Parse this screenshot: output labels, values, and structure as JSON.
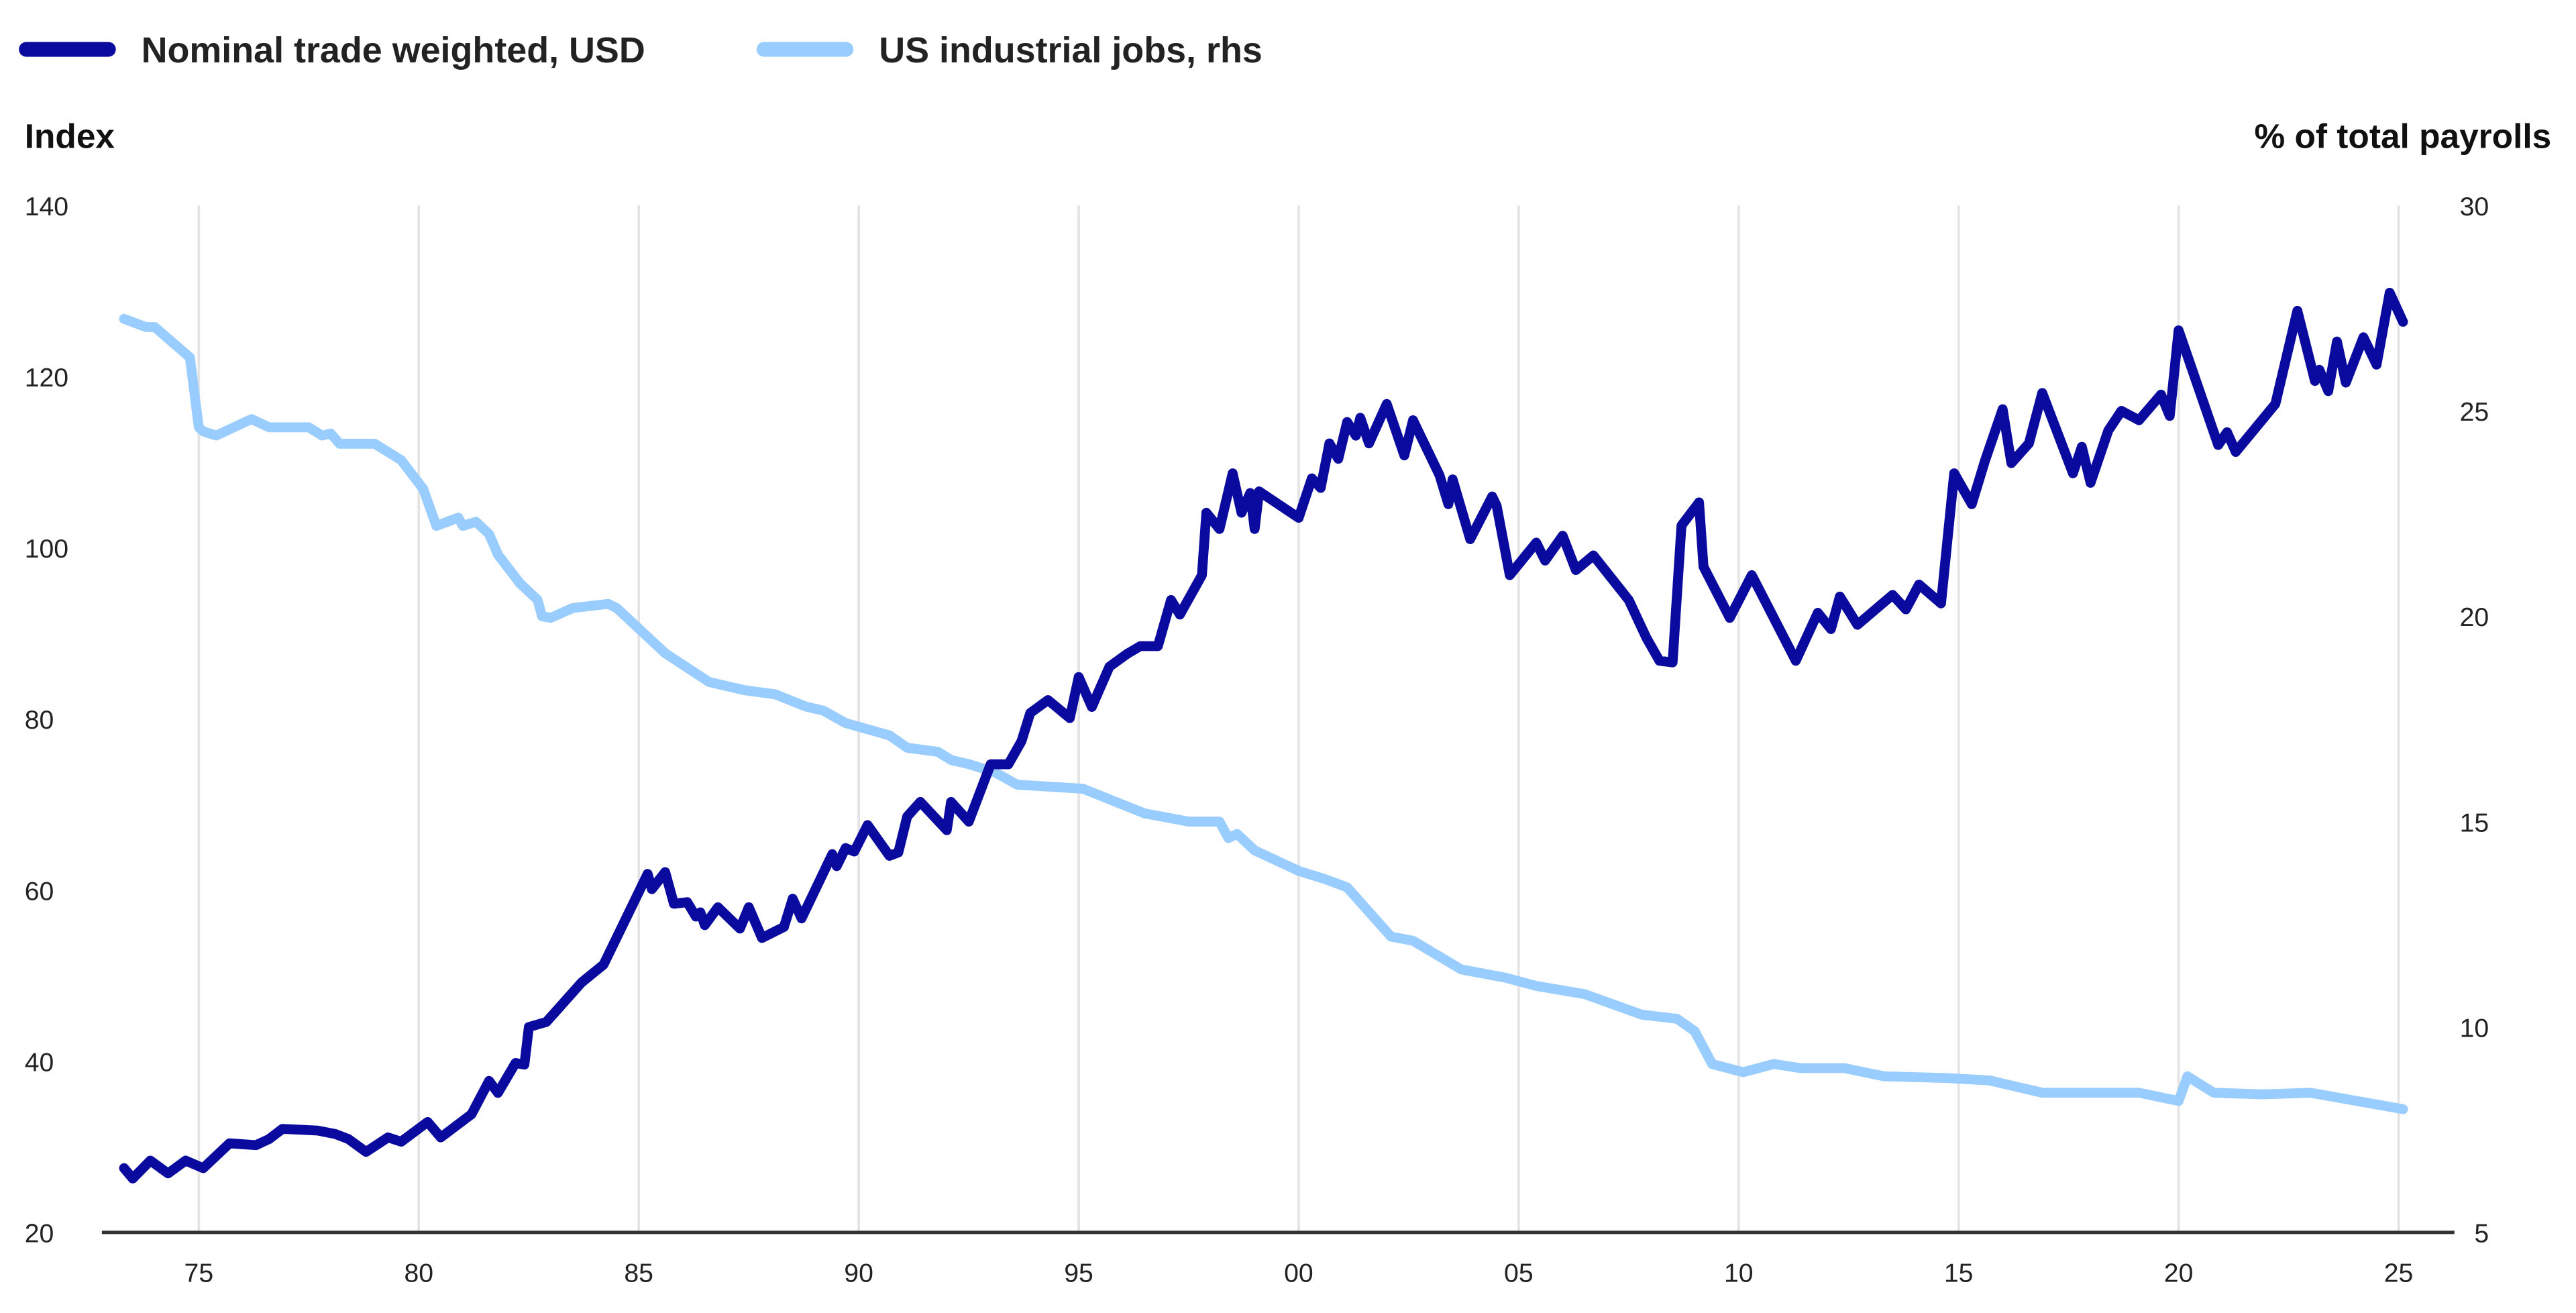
{
  "chart_data": {
    "type": "line",
    "title": "",
    "left_axis": {
      "label": "Index",
      "ylim": [
        20,
        140
      ],
      "ticks": [
        20,
        40,
        60,
        80,
        100,
        120,
        140
      ]
    },
    "right_axis": {
      "label": "% of total payrolls",
      "ylim": [
        5,
        30
      ],
      "ticks": [
        5,
        10,
        15,
        20,
        25,
        30
      ]
    },
    "x_axis": {
      "xlim": [
        1973,
        2026
      ],
      "ticks": [
        1975,
        1980,
        1985,
        1990,
        1995,
        2000,
        2005,
        2010,
        2015,
        2020,
        2025
      ],
      "tick_labels": [
        "75",
        "80",
        "85",
        "90",
        "95",
        "00",
        "05",
        "10",
        "15",
        "20",
        "25"
      ]
    },
    "grid": "vertical",
    "legend": "top-left",
    "series": [
      {
        "name": "Nominal trade weighted, USD",
        "axis": "left",
        "color": "#0a0a9e",
        "points": [
          [
            1973.3,
            27.5
          ],
          [
            1973.5,
            26.3
          ],
          [
            1973.9,
            28.4
          ],
          [
            1974.3,
            26.9
          ],
          [
            1974.7,
            28.4
          ],
          [
            1975.1,
            27.5
          ],
          [
            1975.7,
            30.4
          ],
          [
            1976.3,
            30.2
          ],
          [
            1976.6,
            30.9
          ],
          [
            1976.9,
            32.1
          ],
          [
            1977.7,
            31.9
          ],
          [
            1978.1,
            31.5
          ],
          [
            1978.4,
            30.9
          ],
          [
            1978.8,
            29.4
          ],
          [
            1979.3,
            31.1
          ],
          [
            1979.6,
            30.6
          ],
          [
            1980.2,
            32.9
          ],
          [
            1980.5,
            31.1
          ],
          [
            1981.2,
            33.8
          ],
          [
            1981.6,
            37.7
          ],
          [
            1981.8,
            36.3
          ],
          [
            1982.2,
            39.8
          ],
          [
            1982.4,
            39.6
          ],
          [
            1982.5,
            44.0
          ],
          [
            1982.9,
            44.6
          ],
          [
            1983.7,
            49.2
          ],
          [
            1984.2,
            51.3
          ],
          [
            1985.2,
            61.9
          ],
          [
            1985.3,
            60.1
          ],
          [
            1985.6,
            62.1
          ],
          [
            1985.8,
            58.4
          ],
          [
            1986.1,
            58.6
          ],
          [
            1986.3,
            56.9
          ],
          [
            1986.4,
            57.4
          ],
          [
            1986.5,
            55.9
          ],
          [
            1986.8,
            58.0
          ],
          [
            1987.3,
            55.5
          ],
          [
            1987.5,
            58.0
          ],
          [
            1987.8,
            54.4
          ],
          [
            1988.3,
            55.7
          ],
          [
            1988.5,
            59.0
          ],
          [
            1988.7,
            56.7
          ],
          [
            1989.4,
            64.2
          ],
          [
            1989.5,
            62.8
          ],
          [
            1989.7,
            64.9
          ],
          [
            1989.9,
            64.5
          ],
          [
            1990.2,
            67.6
          ],
          [
            1990.7,
            64.0
          ],
          [
            1990.9,
            64.4
          ],
          [
            1991.1,
            68.6
          ],
          [
            1991.4,
            70.3
          ],
          [
            1992.0,
            67.0
          ],
          [
            1992.1,
            70.3
          ],
          [
            1992.5,
            68.0
          ],
          [
            1993.0,
            74.7
          ],
          [
            1993.4,
            74.7
          ],
          [
            1993.7,
            77.4
          ],
          [
            1993.9,
            80.7
          ],
          [
            1994.3,
            82.2
          ],
          [
            1994.8,
            80.1
          ],
          [
            1995.0,
            84.9
          ],
          [
            1995.3,
            81.4
          ],
          [
            1995.7,
            86.1
          ],
          [
            1996.1,
            87.6
          ],
          [
            1996.4,
            88.5
          ],
          [
            1996.8,
            88.5
          ],
          [
            1997.1,
            93.9
          ],
          [
            1997.3,
            92.2
          ],
          [
            1997.8,
            96.8
          ],
          [
            1997.9,
            104.1
          ],
          [
            1998.2,
            102.2
          ],
          [
            1998.5,
            108.7
          ],
          [
            1998.7,
            104.1
          ],
          [
            1998.9,
            106.4
          ],
          [
            1999.0,
            102.2
          ],
          [
            1999.1,
            106.6
          ],
          [
            2000.0,
            103.5
          ],
          [
            2000.3,
            108.1
          ],
          [
            2000.5,
            107.0
          ],
          [
            2000.7,
            112.2
          ],
          [
            2000.9,
            110.4
          ],
          [
            2001.1,
            114.7
          ],
          [
            2001.3,
            113.1
          ],
          [
            2001.4,
            115.2
          ],
          [
            2001.6,
            112.2
          ],
          [
            2002.0,
            116.8
          ],
          [
            2002.4,
            110.8
          ],
          [
            2002.6,
            114.9
          ],
          [
            2003.2,
            108.5
          ],
          [
            2003.4,
            105.1
          ],
          [
            2003.5,
            108.0
          ],
          [
            2003.9,
            101.0
          ],
          [
            2004.4,
            106.0
          ],
          [
            2004.5,
            104.9
          ],
          [
            2004.8,
            96.8
          ],
          [
            2005.4,
            100.6
          ],
          [
            2005.6,
            98.5
          ],
          [
            2006.0,
            101.4
          ],
          [
            2006.3,
            97.4
          ],
          [
            2006.7,
            99.1
          ],
          [
            2007.5,
            93.9
          ],
          [
            2007.9,
            89.5
          ],
          [
            2008.2,
            86.8
          ],
          [
            2008.5,
            86.6
          ],
          [
            2008.7,
            102.6
          ],
          [
            2009.1,
            105.3
          ],
          [
            2009.2,
            97.8
          ],
          [
            2009.8,
            91.8
          ],
          [
            2010.3,
            96.8
          ],
          [
            2011.3,
            86.8
          ],
          [
            2011.8,
            92.4
          ],
          [
            2012.1,
            90.5
          ],
          [
            2012.3,
            94.3
          ],
          [
            2012.7,
            91.0
          ],
          [
            2013.5,
            94.5
          ],
          [
            2013.8,
            92.8
          ],
          [
            2014.1,
            95.7
          ],
          [
            2014.6,
            93.5
          ],
          [
            2014.9,
            108.7
          ],
          [
            2015.3,
            105.1
          ],
          [
            2015.6,
            110.2
          ],
          [
            2016.0,
            116.2
          ],
          [
            2016.2,
            109.9
          ],
          [
            2016.6,
            112.2
          ],
          [
            2016.9,
            118.1
          ],
          [
            2017.6,
            108.7
          ],
          [
            2017.8,
            111.8
          ],
          [
            2018.0,
            107.6
          ],
          [
            2018.4,
            113.7
          ],
          [
            2018.7,
            116.0
          ],
          [
            2019.1,
            114.9
          ],
          [
            2019.6,
            117.9
          ],
          [
            2019.8,
            115.4
          ],
          [
            2020.0,
            125.4
          ],
          [
            2020.9,
            112.0
          ],
          [
            2021.1,
            113.5
          ],
          [
            2021.3,
            111.2
          ],
          [
            2022.2,
            116.8
          ],
          [
            2022.7,
            127.7
          ],
          [
            2023.1,
            119.5
          ],
          [
            2023.2,
            120.8
          ],
          [
            2023.4,
            118.3
          ],
          [
            2023.6,
            124.1
          ],
          [
            2023.8,
            119.3
          ],
          [
            2024.2,
            124.6
          ],
          [
            2024.5,
            121.4
          ],
          [
            2024.8,
            129.8
          ],
          [
            2025.1,
            126.4
          ]
        ]
      },
      {
        "name": "US industrial jobs, rhs",
        "axis": "right",
        "color": "#99ccff",
        "points": [
          [
            1973.3,
            27.24
          ],
          [
            1973.5,
            27.16
          ],
          [
            1973.8,
            27.04
          ],
          [
            1974.0,
            27.04
          ],
          [
            1974.8,
            26.3
          ],
          [
            1975.0,
            24.6
          ],
          [
            1975.1,
            24.5
          ],
          [
            1975.4,
            24.4
          ],
          [
            1976.2,
            24.8
          ],
          [
            1976.6,
            24.6
          ],
          [
            1977.5,
            24.6
          ],
          [
            1977.8,
            24.4
          ],
          [
            1978.0,
            24.45
          ],
          [
            1978.2,
            24.2
          ],
          [
            1979.0,
            24.2
          ],
          [
            1979.6,
            23.8
          ],
          [
            1980.1,
            23.1
          ],
          [
            1980.4,
            22.2
          ],
          [
            1980.9,
            22.4
          ],
          [
            1981.0,
            22.2
          ],
          [
            1981.3,
            22.3
          ],
          [
            1981.6,
            22.0
          ],
          [
            1981.8,
            21.5
          ],
          [
            1982.3,
            20.8
          ],
          [
            1982.7,
            20.4
          ],
          [
            1982.8,
            20.0
          ],
          [
            1983.0,
            19.96
          ],
          [
            1983.5,
            20.2
          ],
          [
            1984.3,
            20.3
          ],
          [
            1984.5,
            20.2
          ],
          [
            1985.6,
            19.1
          ],
          [
            1986.6,
            18.4
          ],
          [
            1987.4,
            18.2
          ],
          [
            1988.1,
            18.1
          ],
          [
            1988.8,
            17.8
          ],
          [
            1989.2,
            17.7
          ],
          [
            1989.7,
            17.4
          ],
          [
            1990.7,
            17.1
          ],
          [
            1991.1,
            16.8
          ],
          [
            1991.8,
            16.7
          ],
          [
            1992.1,
            16.5
          ],
          [
            1992.5,
            16.4
          ],
          [
            1993.1,
            16.2
          ],
          [
            1993.6,
            15.9
          ],
          [
            1995.1,
            15.8
          ],
          [
            1995.8,
            15.5
          ],
          [
            1996.5,
            15.2
          ],
          [
            1997.5,
            15.0
          ],
          [
            1998.2,
            15.0
          ],
          [
            1998.4,
            14.6
          ],
          [
            1998.6,
            14.7
          ],
          [
            1999.0,
            14.3
          ],
          [
            2000.0,
            13.8
          ],
          [
            2000.6,
            13.6
          ],
          [
            2001.1,
            13.4
          ],
          [
            2002.1,
            12.2
          ],
          [
            2002.6,
            12.1
          ],
          [
            2003.7,
            11.4
          ],
          [
            2004.7,
            11.2
          ],
          [
            2005.4,
            11.0
          ],
          [
            2006.5,
            10.8
          ],
          [
            2007.8,
            10.3
          ],
          [
            2008.6,
            10.2
          ],
          [
            2009.0,
            9.9
          ],
          [
            2009.4,
            9.1
          ],
          [
            2010.1,
            8.9
          ],
          [
            2010.8,
            9.1
          ],
          [
            2011.4,
            9.0
          ],
          [
            2012.4,
            9.0
          ],
          [
            2013.3,
            8.8
          ],
          [
            2014.7,
            8.76
          ],
          [
            2015.7,
            8.7
          ],
          [
            2016.9,
            8.4
          ],
          [
            2019.1,
            8.4
          ],
          [
            2020.0,
            8.2
          ],
          [
            2020.2,
            8.8
          ],
          [
            2020.8,
            8.4
          ],
          [
            2021.9,
            8.36
          ],
          [
            2023.0,
            8.4
          ],
          [
            2025.1,
            8.0
          ]
        ]
      }
    ]
  }
}
